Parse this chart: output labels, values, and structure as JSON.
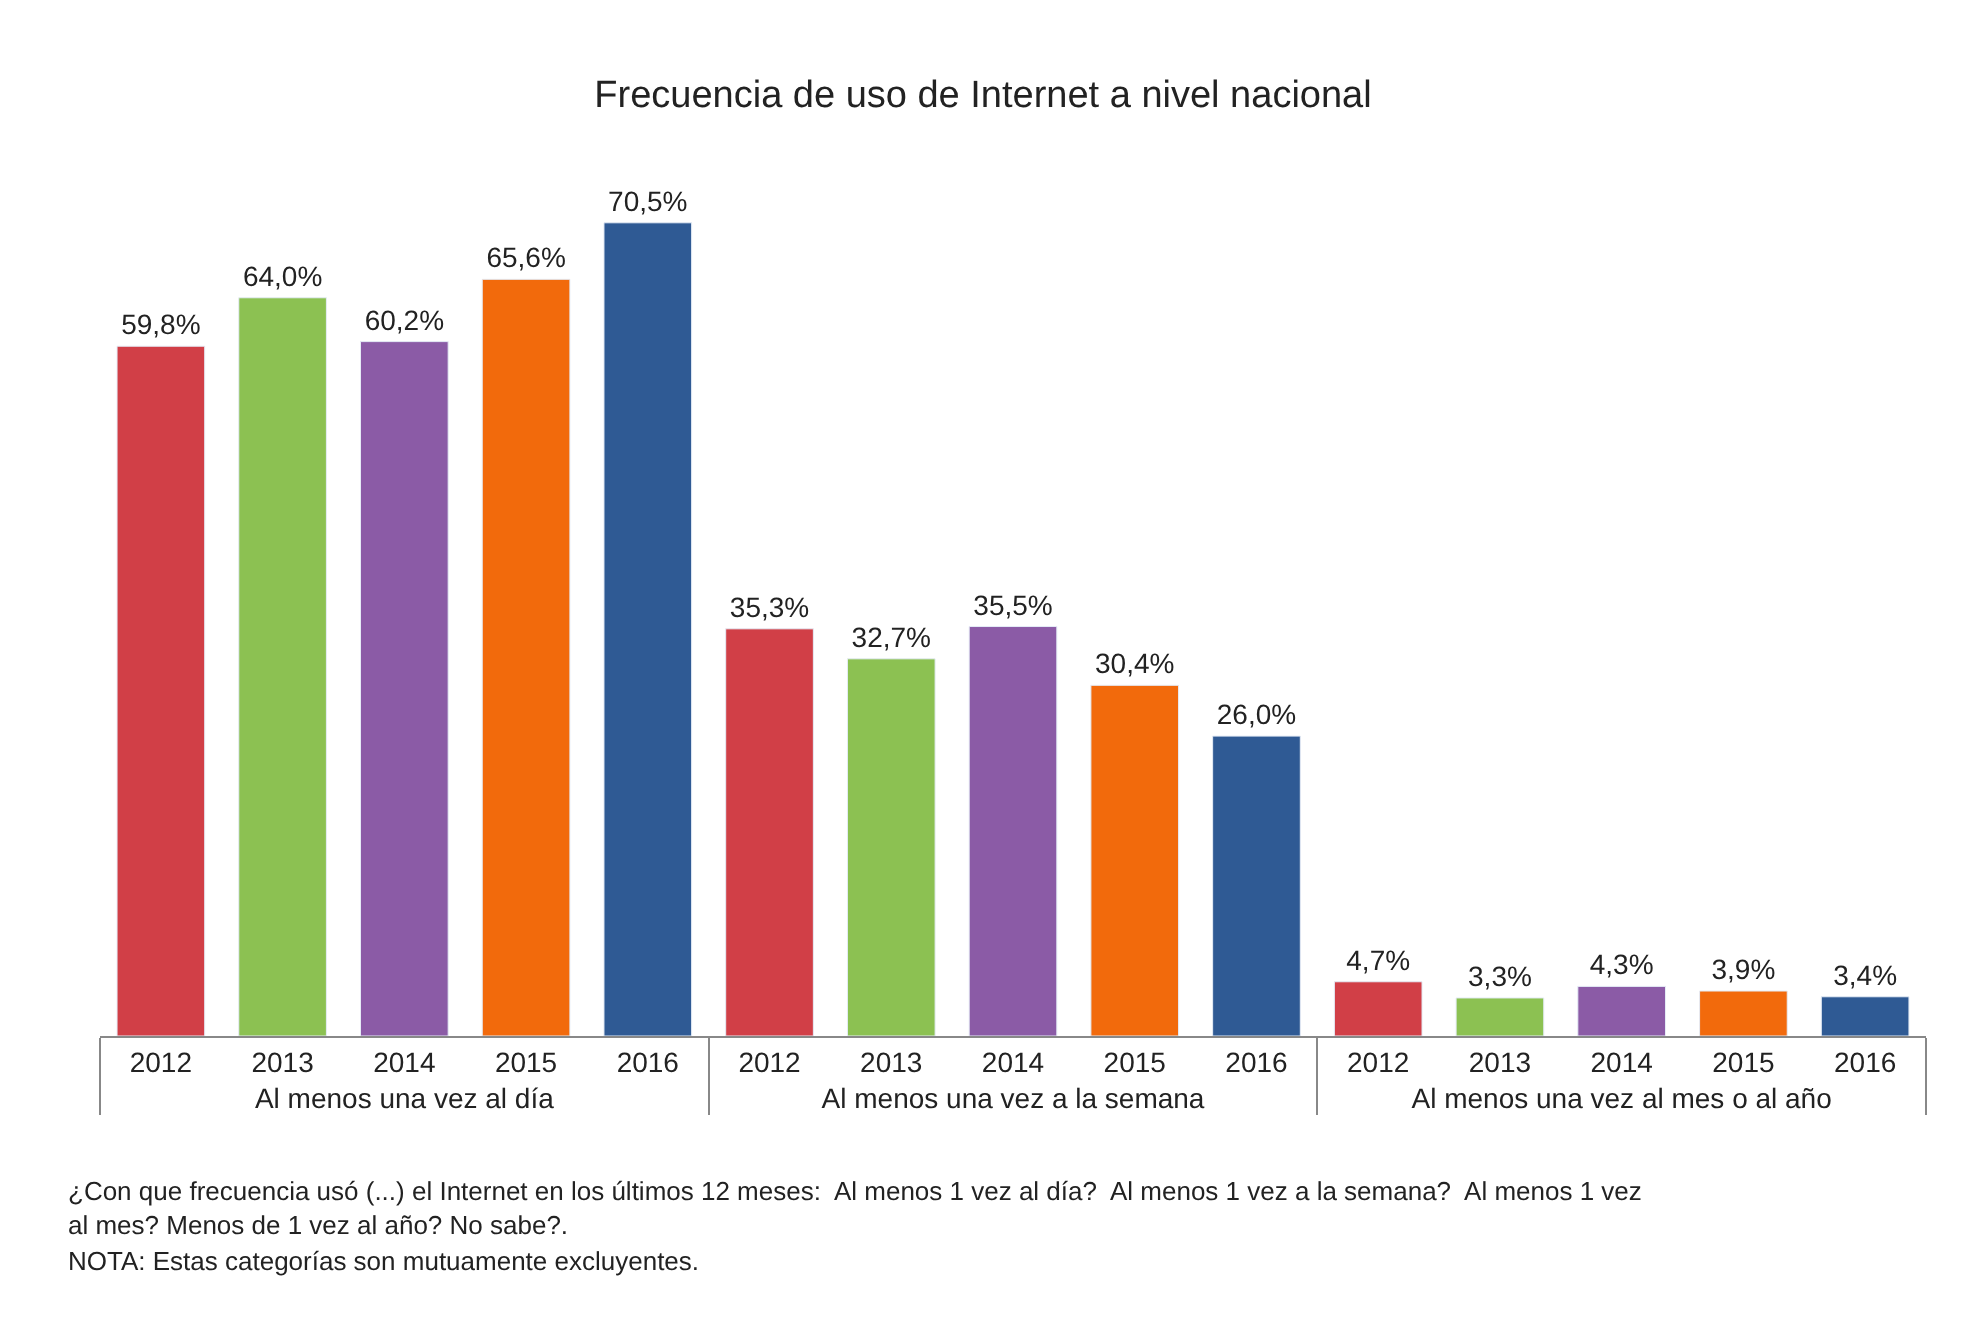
{
  "chart_data": {
    "type": "bar",
    "title": "Frecuencia de uso de Internet a nivel nacional",
    "categories": [
      "Al menos una vez al día",
      "Al menos una vez a la semana",
      "Al menos una vez al mes o al año"
    ],
    "series": [
      {
        "name": "2012",
        "color": "#d13f47",
        "values": [
          59.8,
          35.3,
          4.7
        ],
        "value_labels": [
          "59,8%",
          "35,3%",
          "4,7%"
        ]
      },
      {
        "name": "2013",
        "color": "#8cc152",
        "values": [
          64.0,
          32.7,
          3.3
        ],
        "value_labels": [
          "64,0%",
          "32,7%",
          "3,3%"
        ]
      },
      {
        "name": "2014",
        "color": "#8b5ba6",
        "values": [
          60.2,
          35.5,
          4.3
        ],
        "value_labels": [
          "60,2%",
          "35,5%",
          "4,3%"
        ]
      },
      {
        "name": "2015",
        "color": "#f26a0c",
        "values": [
          65.6,
          30.4,
          3.9
        ],
        "value_labels": [
          "65,6%",
          "30,4%",
          "3,9%"
        ]
      },
      {
        "name": "2016",
        "color": "#2f5a94",
        "values": [
          70.5,
          26.0,
          3.4
        ],
        "value_labels": [
          "70,5%",
          "26,0%",
          "3,4%"
        ]
      }
    ],
    "annotations": [
      "¿Con que frecuencia usó (...) el Internet en los últimos 12 meses:  Al menos 1 vez al día?  Al menos 1 vez a la semana?  Al menos 1 vez al mes? Menos de 1 vez al año? No sabe?.",
      "NOTA: Estas categorías son mutuamente excluyentes."
    ],
    "legend": false
  }
}
